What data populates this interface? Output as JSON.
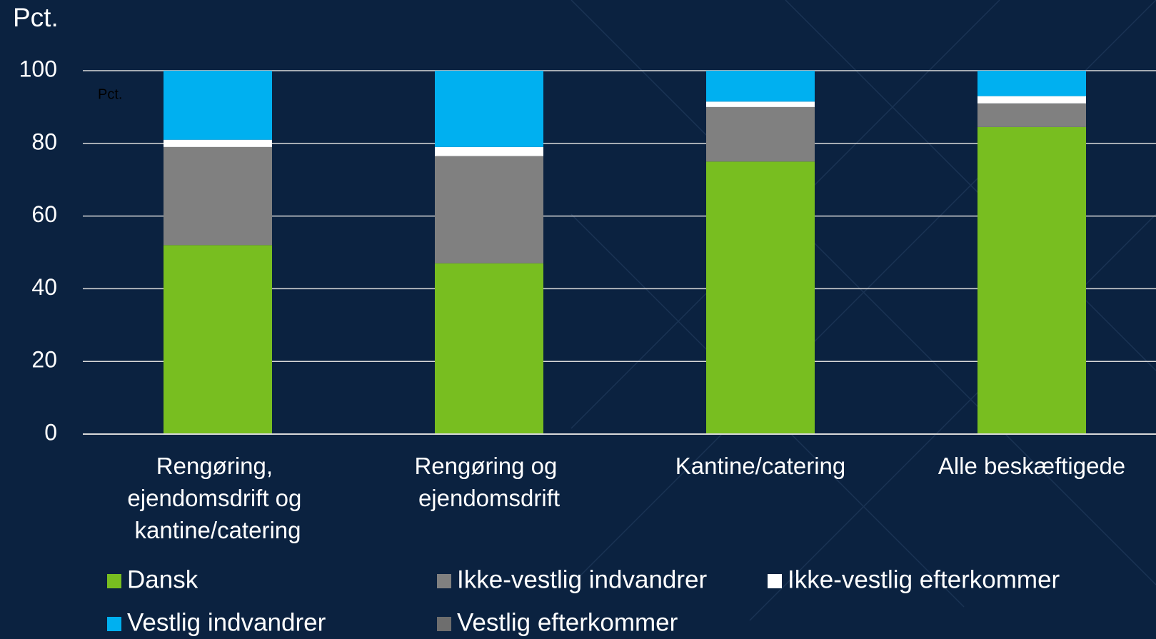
{
  "chart_data": {
    "type": "bar",
    "stacked": true,
    "ylabel": "Pct.",
    "annotation": "Pct.",
    "categories": [
      "Rengøring, ejendomsdrift og kantine/catering",
      "Rengøring og ejendomsdrift",
      "Kantine/catering",
      "Alle beskæftigede"
    ],
    "series": [
      {
        "name": "Dansk",
        "color": "#78be20",
        "values": [
          52,
          47,
          75,
          84.5
        ]
      },
      {
        "name": "Ikke-vestlig indvandrer",
        "color": "#808080",
        "values": [
          27,
          29.5,
          15,
          6.5
        ]
      },
      {
        "name": "Ikke-vestlig efterkommer",
        "color": "#ffffff",
        "values": [
          2,
          2.5,
          1.5,
          2
        ]
      },
      {
        "name": "Vestlig indvandrer",
        "color": "#00b0f0",
        "values": [
          19,
          21,
          8.5,
          7
        ]
      },
      {
        "name": "Vestlig efterkommer",
        "color": "#6e6e6e",
        "values": [
          0,
          0,
          0,
          0
        ]
      }
    ],
    "ylim": [
      0,
      100
    ],
    "yticks": [
      0,
      20,
      40,
      60,
      80,
      100
    ],
    "grid": true
  }
}
